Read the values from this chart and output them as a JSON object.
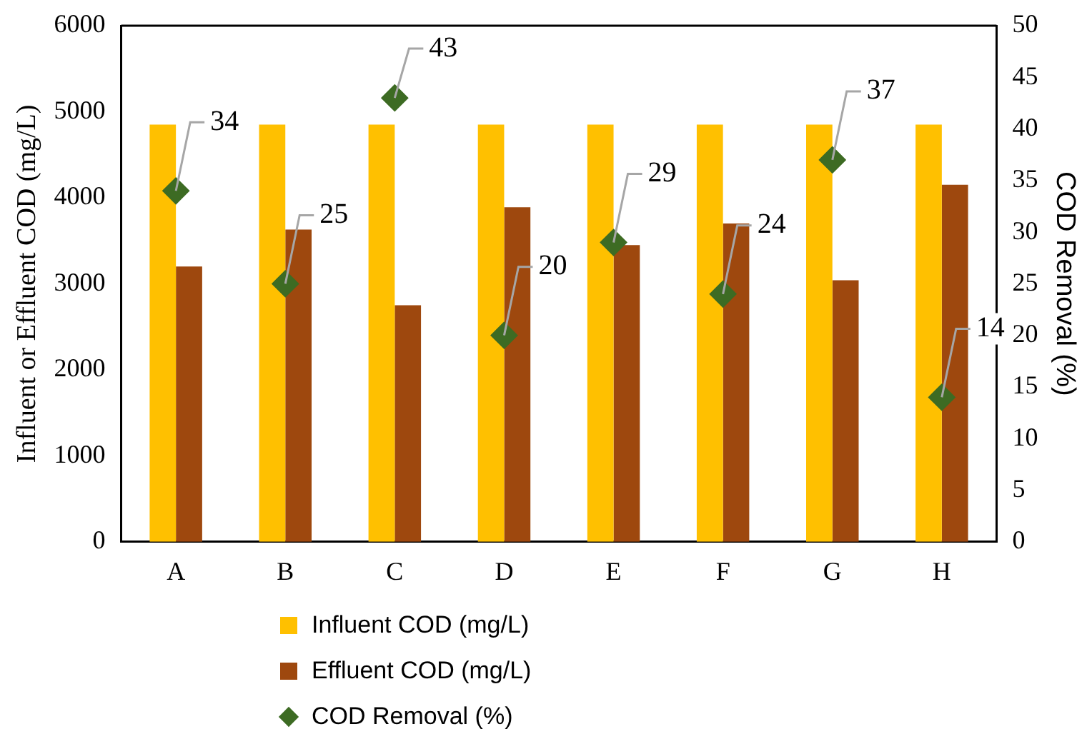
{
  "chart_data": {
    "type": "bar",
    "categories": [
      "A",
      "B",
      "C",
      "D",
      "E",
      "F",
      "G",
      "H"
    ],
    "series": [
      {
        "name": "Influent COD (mg/L)",
        "color": "#ffc000",
        "values": [
          4850,
          4850,
          4850,
          4850,
          4850,
          4850,
          4850,
          4850
        ]
      },
      {
        "name": "Effluent COD (mg/L)",
        "color": "#9e480e",
        "values": [
          3200,
          3630,
          2750,
          3890,
          3450,
          3700,
          3040,
          4150
        ]
      },
      {
        "name": "COD Removal (%)",
        "type": "scatter",
        "axis": "y2",
        "color": "#3d6b23",
        "marker": "diamond",
        "values": [
          34,
          25,
          43,
          20,
          29,
          24,
          37,
          14
        ],
        "value_labels": [
          "34",
          "25",
          "43",
          "20",
          "29",
          "24",
          "37",
          "14"
        ]
      }
    ],
    "ylabel": "Influent or Effluent COD (mg/L)",
    "y2label": "COD Removal (%)",
    "ylim": [
      0,
      6000
    ],
    "yticks": [
      0,
      1000,
      2000,
      3000,
      4000,
      5000,
      6000
    ],
    "y2lim": [
      0,
      50
    ],
    "y2ticks": [
      0,
      5,
      10,
      15,
      20,
      25,
      30,
      35,
      40,
      45,
      50
    ],
    "grid": false,
    "legend": "bottom"
  }
}
